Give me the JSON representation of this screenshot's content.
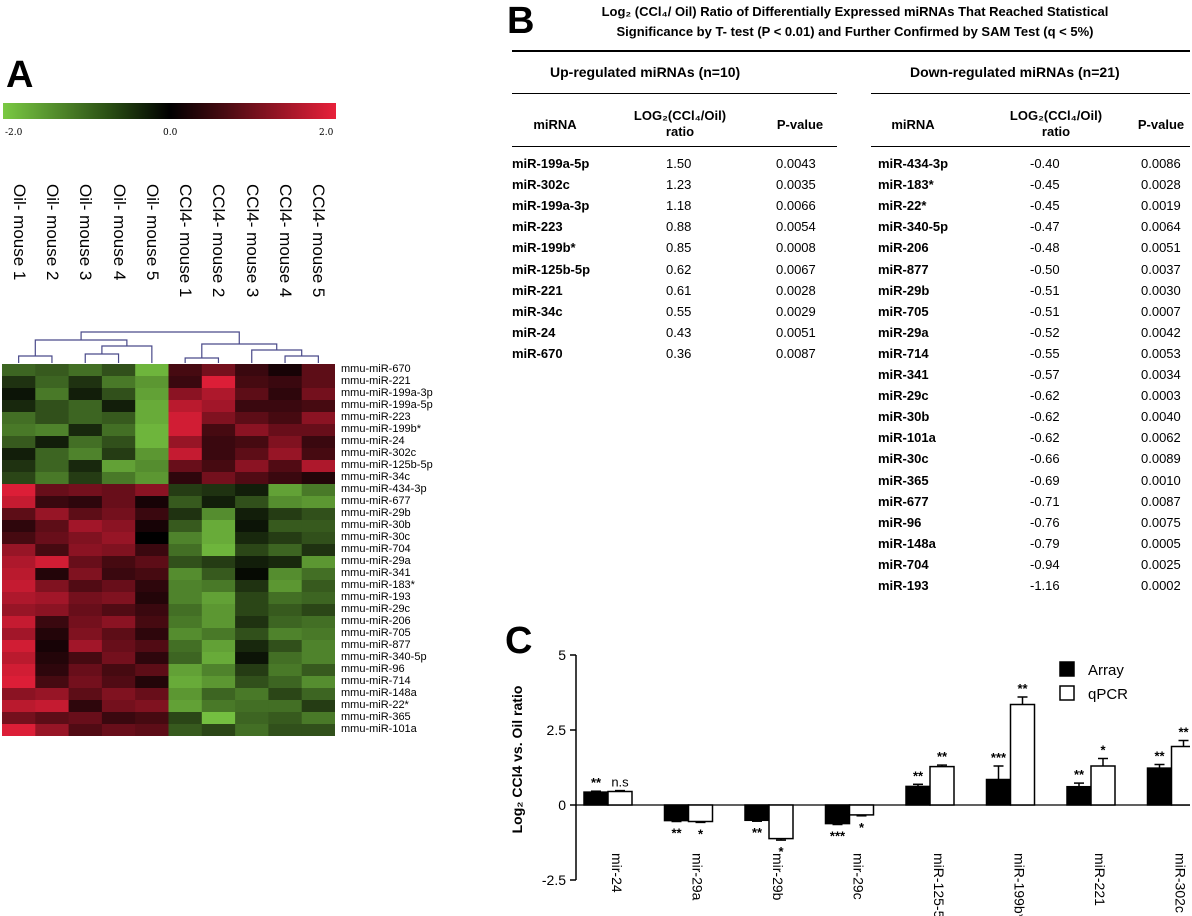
{
  "panels": {
    "a": "A",
    "b": "B",
    "c": "C"
  },
  "heatmap": {
    "colorbar": {
      "min_label": "-2.0",
      "mid_label": "0.0",
      "max_label": "2.0",
      "low_color": "#7ac943",
      "mid_color": "#000000",
      "high_color": "#e8203a"
    },
    "samples": [
      "Oil- mouse 1",
      "Oil- mouse 2",
      "Oil- mouse 3",
      "Oil- mouse 4",
      "Oil- mouse 5",
      "CCl4- mouse 1",
      "CCl4- mouse 2",
      "CCl4- mouse 3",
      "CCl4- mouse 4",
      "CCl4- mouse 5"
    ],
    "genes": [
      "mmu-miR-670",
      "mmu-miR-221",
      "mmu-miR-199a-3p",
      "mmu-miR-199a-5p",
      "mmu-miR-223",
      "mmu-miR-199b*",
      "mmu-miR-24",
      "mmu-miR-302c",
      "mmu-miR-125b-5p",
      "mmu-miR-34c",
      "mmu-miR-434-3p",
      "mmu-miR-677",
      "mmu-miR-29b",
      "mmu-miR-30b",
      "mmu-miR-30c",
      "mmu-miR-704",
      "mmu-miR-29a",
      "mmu-miR-341",
      "mmu-miR-183*",
      "mmu-miR-193",
      "mmu-miR-29c",
      "mmu-miR-206",
      "mmu-miR-705",
      "mmu-miR-877",
      "mmu-miR-340-5p",
      "mmu-miR-96",
      "mmu-miR-714",
      "mmu-miR-148a",
      "mmu-miR-22*",
      "mmu-miR-365",
      "mmu-miR-101a"
    ],
    "values": [
      [
        -1.0,
        -0.9,
        -1.1,
        -0.8,
        -1.8,
        0.6,
        1.0,
        0.5,
        0.2,
        0.8
      ],
      [
        -0.5,
        -1.0,
        -0.5,
        -1.2,
        -1.5,
        0.5,
        1.9,
        0.6,
        0.5,
        0.8
      ],
      [
        -0.2,
        -1.2,
        -0.3,
        -0.8,
        -1.6,
        1.2,
        1.5,
        0.8,
        0.4,
        1.0
      ],
      [
        -0.4,
        -0.8,
        -1.0,
        -0.3,
        -1.7,
        1.6,
        1.4,
        0.5,
        0.5,
        0.6
      ],
      [
        -1.1,
        -0.8,
        -1.0,
        -0.9,
        -1.7,
        1.8,
        1.1,
        0.8,
        0.6,
        1.2
      ],
      [
        -1.2,
        -1.3,
        -0.4,
        -1.1,
        -1.8,
        1.8,
        0.6,
        1.2,
        0.9,
        0.9
      ],
      [
        -0.9,
        -0.3,
        -1.1,
        -0.8,
        -1.8,
        1.3,
        0.5,
        0.6,
        1.1,
        0.5
      ],
      [
        -0.3,
        -1.0,
        -1.3,
        -0.6,
        -1.5,
        1.7,
        0.5,
        0.8,
        1.3,
        0.6
      ],
      [
        -0.5,
        -1.0,
        -0.4,
        -1.6,
        -1.4,
        0.9,
        0.6,
        1.2,
        0.7,
        1.5
      ],
      [
        -0.7,
        -1.2,
        -0.6,
        -1.2,
        -1.5,
        0.4,
        1.0,
        0.7,
        0.5,
        0.3
      ],
      [
        1.9,
        0.9,
        1.0,
        0.9,
        1.2,
        -0.6,
        -0.5,
        -0.3,
        -1.6,
        -1.2
      ],
      [
        1.7,
        0.5,
        0.4,
        0.9,
        0.2,
        -0.9,
        -0.3,
        -0.8,
        -1.4,
        -1.5
      ],
      [
        0.8,
        1.3,
        0.8,
        1.0,
        0.5,
        -0.5,
        -1.4,
        -0.3,
        -0.6,
        -0.8
      ],
      [
        0.4,
        0.8,
        1.4,
        1.2,
        0.2,
        -0.9,
        -1.7,
        -0.2,
        -0.9,
        -0.9
      ],
      [
        0.6,
        0.9,
        1.1,
        1.3,
        0.0,
        -1.3,
        -1.7,
        -0.4,
        -0.6,
        -0.8
      ],
      [
        1.3,
        0.6,
        1.2,
        1.1,
        0.5,
        -1.1,
        -1.8,
        -0.7,
        -1.0,
        -0.5
      ],
      [
        1.5,
        1.8,
        0.9,
        0.6,
        0.8,
        -0.8,
        -0.6,
        -0.3,
        -0.4,
        -1.5
      ],
      [
        1.6,
        0.3,
        1.1,
        0.5,
        0.6,
        -1.4,
        -0.9,
        -0.1,
        -1.4,
        -1.1
      ],
      [
        1.7,
        1.1,
        0.7,
        0.9,
        0.4,
        -1.3,
        -1.2,
        -0.5,
        -1.5,
        -0.9
      ],
      [
        1.5,
        1.4,
        1.0,
        1.1,
        0.3,
        -1.3,
        -1.6,
        -0.7,
        -1.1,
        -1.0
      ],
      [
        1.3,
        1.2,
        0.9,
        0.7,
        0.5,
        -1.1,
        -1.5,
        -0.7,
        -0.9,
        -0.7
      ],
      [
        1.7,
        0.5,
        1.0,
        1.2,
        0.6,
        -1.2,
        -1.5,
        -0.5,
        -1.0,
        -1.1
      ],
      [
        1.4,
        0.3,
        1.1,
        0.8,
        0.4,
        -1.4,
        -1.2,
        -0.8,
        -1.3,
        -1.2
      ],
      [
        1.8,
        0.2,
        1.4,
        0.9,
        0.7,
        -1.1,
        -1.6,
        -0.4,
        -0.8,
        -1.3
      ],
      [
        1.6,
        0.3,
        0.6,
        1.0,
        0.4,
        -1.0,
        -1.7,
        -0.2,
        -1.1,
        -1.3
      ],
      [
        1.8,
        0.4,
        0.9,
        0.6,
        0.8,
        -1.6,
        -1.3,
        -0.6,
        -1.2,
        -0.9
      ],
      [
        1.9,
        0.6,
        1.0,
        0.7,
        0.3,
        -1.7,
        -1.5,
        -0.8,
        -1.0,
        -1.4
      ],
      [
        1.2,
        1.3,
        0.8,
        1.1,
        0.9,
        -1.5,
        -1.0,
        -1.2,
        -0.7,
        -1.0
      ],
      [
        1.6,
        1.7,
        0.4,
        1.0,
        1.1,
        -1.6,
        -1.2,
        -1.1,
        -1.1,
        -0.6
      ],
      [
        1.0,
        0.8,
        0.9,
        0.5,
        0.6,
        -0.7,
        -1.9,
        -1.0,
        -0.9,
        -1.2
      ],
      [
        1.9,
        1.3,
        0.7,
        0.9,
        0.8,
        -0.9,
        -0.7,
        -1.1,
        -0.8,
        -0.8
      ]
    ]
  },
  "table": {
    "title_line1": "Log₂ (CCl₄/ Oil) Ratio of Differentially Expressed miRNAs That Reached Statistical",
    "title_line2": "Significance by T- test (P < 0.01) and Further Confirmed by SAM Test (q < 5%)",
    "up_title": "Up-regulated miRNAs (n=10)",
    "down_title": "Down-regulated miRNAs (n=21)",
    "col_mirna": "miRNA",
    "col_ratio_1": "LOG₂(CCl₄/Oil)",
    "col_ratio_2": "ratio",
    "col_pvalue": "P-value",
    "up_rows": [
      {
        "name": "miR-199a-5p",
        "ratio": "1.50",
        "p": "0.0043"
      },
      {
        "name": "miR-302c",
        "ratio": "1.23",
        "p": "0.0035"
      },
      {
        "name": "miR-199a-3p",
        "ratio": "1.18",
        "p": "0.0066"
      },
      {
        "name": "miR-223",
        "ratio": "0.88",
        "p": "0.0054"
      },
      {
        "name": "miR-199b*",
        "ratio": "0.85",
        "p": "0.0008"
      },
      {
        "name": "miR-125b-5p",
        "ratio": "0.62",
        "p": "0.0067"
      },
      {
        "name": "miR-221",
        "ratio": "0.61",
        "p": "0.0028"
      },
      {
        "name": "miR-34c",
        "ratio": "0.55",
        "p": "0.0029"
      },
      {
        "name": "miR-24",
        "ratio": "0.43",
        "p": "0.0051"
      },
      {
        "name": "miR-670",
        "ratio": "0.36",
        "p": "0.0087"
      }
    ],
    "down_rows": [
      {
        "name": "miR-434-3p",
        "ratio": "-0.40",
        "p": "0.0086"
      },
      {
        "name": "miR-183*",
        "ratio": "-0.45",
        "p": "0.0028"
      },
      {
        "name": "miR-22*",
        "ratio": "-0.45",
        "p": "0.0019"
      },
      {
        "name": "miR-340-5p",
        "ratio": "-0.47",
        "p": "0.0064"
      },
      {
        "name": "miR-206",
        "ratio": "-0.48",
        "p": "0.0051"
      },
      {
        "name": "miR-877",
        "ratio": "-0.50",
        "p": "0.0037"
      },
      {
        "name": "miR-29b",
        "ratio": "-0.51",
        "p": "0.0030"
      },
      {
        "name": "miR-705",
        "ratio": "-0.51",
        "p": "0.0007"
      },
      {
        "name": "miR-29a",
        "ratio": "-0.52",
        "p": "0.0042"
      },
      {
        "name": "miR-714",
        "ratio": "-0.55",
        "p": "0.0053"
      },
      {
        "name": "miR-341",
        "ratio": "-0.57",
        "p": "0.0034"
      },
      {
        "name": "miR-29c",
        "ratio": "-0.62",
        "p": "0.0003"
      },
      {
        "name": "miR-30b",
        "ratio": "-0.62",
        "p": "0.0040"
      },
      {
        "name": "miR-101a",
        "ratio": "-0.62",
        "p": "0.0062"
      },
      {
        "name": "miR-30c",
        "ratio": "-0.66",
        "p": "0.0089"
      },
      {
        "name": "miR-365",
        "ratio": "-0.69",
        "p": "0.0010"
      },
      {
        "name": "miR-677",
        "ratio": "-0.71",
        "p": "0.0087"
      },
      {
        "name": "miR-96",
        "ratio": "-0.76",
        "p": "0.0075"
      },
      {
        "name": "miR-148a",
        "ratio": "-0.79",
        "p": "0.0005"
      },
      {
        "name": "miR-704",
        "ratio": "-0.94",
        "p": "0.0025"
      },
      {
        "name": "miR-193",
        "ratio": "-1.16",
        "p": "0.0002"
      }
    ]
  },
  "chart_data": {
    "type": "bar",
    "ylabel": "Log₂ CCl4 vs. Oil ratio",
    "ylim": [
      -2.5,
      5
    ],
    "yticks": [
      "-2.5",
      "0",
      "2.5",
      "5"
    ],
    "categories": [
      "mir-24",
      "mir-29a",
      "mir-29b",
      "mir-29c",
      "miR-125-5p",
      "miR-199b*",
      "miR-221",
      "miR-302c"
    ],
    "series": [
      {
        "name": "Array",
        "color": "#000000",
        "values": [
          0.43,
          -0.52,
          -0.51,
          -0.62,
          0.62,
          0.85,
          0.61,
          1.23
        ],
        "errors": [
          0.03,
          0.03,
          0.03,
          0.03,
          0.07,
          0.45,
          0.12,
          0.12
        ],
        "significance": [
          "**",
          "**",
          "**",
          "***",
          "**",
          "***",
          "**",
          "**"
        ]
      },
      {
        "name": "qPCR",
        "color": "#ffffff",
        "values": [
          0.45,
          -0.55,
          -1.12,
          -0.33,
          1.28,
          3.35,
          1.3,
          1.95
        ],
        "errors": [
          0.03,
          0.03,
          0.05,
          0.03,
          0.05,
          0.25,
          0.25,
          0.2
        ],
        "significance": [
          "n.s",
          "*",
          "*",
          "*",
          "**",
          "**",
          "*",
          "**"
        ]
      }
    ],
    "legend_position": "top-right"
  }
}
